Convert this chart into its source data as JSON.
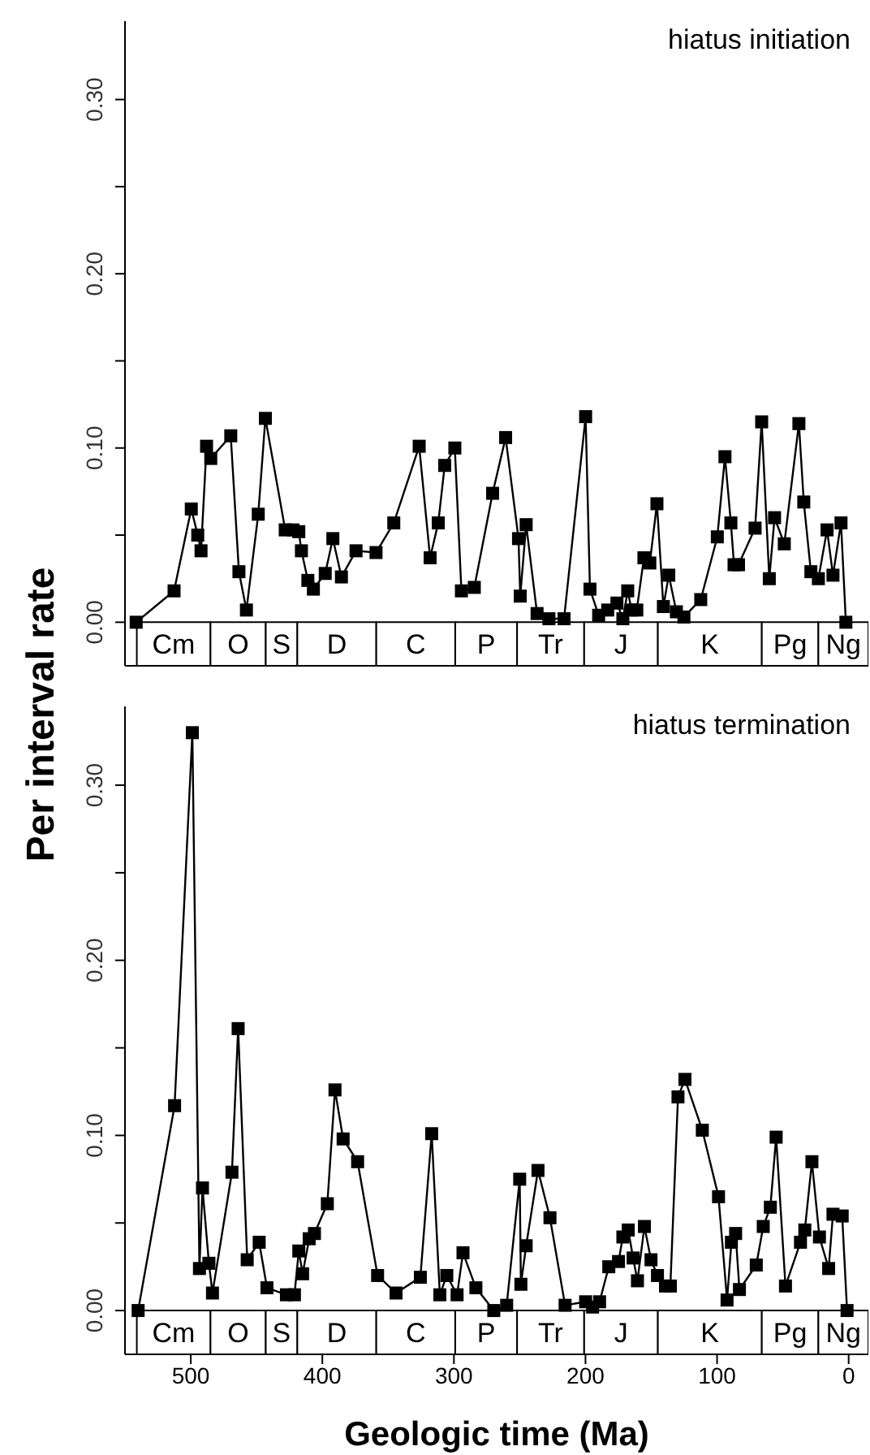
{
  "chart_data": [
    {
      "type": "line",
      "ylabel": "Per interval rate",
      "annotations": [
        "hiatus initiation"
      ],
      "marker": "square",
      "color": "#000000",
      "tick_labels": "y",
      "xlim": [
        550,
        -15
      ],
      "xticks": [
        500,
        400,
        300,
        200,
        100,
        0
      ],
      "ylim": [
        -0.025,
        0.345
      ],
      "yticks": [
        {
          "value": 0,
          "label": "0.00"
        },
        {
          "value": 0.05,
          "label": null
        },
        {
          "value": 0.1,
          "label": "0.10"
        },
        {
          "value": 0.15,
          "label": null
        },
        {
          "value": 0.2,
          "label": "0.20"
        },
        {
          "value": 0.25,
          "label": null
        },
        {
          "value": 0.3,
          "label": "0.30"
        }
      ],
      "bands": [
        {
          "axis": "x",
          "from": 541,
          "to": 485,
          "label": "Cm"
        },
        {
          "axis": "x",
          "from": 485,
          "to": 443,
          "label": "O"
        },
        {
          "axis": "x",
          "from": 443,
          "to": 419,
          "label": "S"
        },
        {
          "axis": "x",
          "from": 419,
          "to": 359,
          "label": "D"
        },
        {
          "axis": "x",
          "from": 359,
          "to": 299,
          "label": "C"
        },
        {
          "axis": "x",
          "from": 299,
          "to": 252,
          "label": "P"
        },
        {
          "axis": "x",
          "from": 252,
          "to": 201,
          "label": "Tr"
        },
        {
          "axis": "x",
          "from": 201,
          "to": 145,
          "label": "J"
        },
        {
          "axis": "x",
          "from": 145,
          "to": 66,
          "label": "K"
        },
        {
          "axis": "x",
          "from": 66,
          "to": 23,
          "label": "Pg"
        },
        {
          "axis": "x",
          "from": 23,
          "to": -15,
          "label": "Ng"
        }
      ],
      "x": [
        541.5,
        512.7,
        499.6,
        494.7,
        492.2,
        488,
        484.8,
        469.6,
        463.4,
        457.7,
        448.7,
        443.3,
        428.2,
        422.4,
        417.9,
        415.9,
        411,
        406.8,
        397.8,
        392,
        385.5,
        374.4,
        359.2,
        345.7,
        326.4,
        318.1,
        311.9,
        307,
        299.3,
        294.3,
        284.5,
        270.6,
        260.7,
        250.9,
        249.6,
        245.1,
        236.8,
        227.8,
        216.3,
        199.9,
        196.6,
        190,
        183.1,
        176.1,
        171.6,
        167.9,
        165,
        161,
        155.6,
        151.1,
        145.7,
        140.8,
        136.7,
        130.9,
        125.2,
        112.4,
        99.8,
        94,
        89.5,
        87.1,
        83.7,
        71.1,
        66.1,
        60.3,
        56.3,
        48.9,
        37.8,
        34.1,
        28.7,
        23,
        16.4,
        11.9,
        5.8,
        2.1
      ],
      "values": [
        0,
        0.018,
        0.065,
        0.05,
        0.041,
        0.101,
        0.094,
        0.107,
        0.029,
        0.007,
        0.062,
        0.117,
        0.053,
        0.053,
        0.052,
        0.041,
        0.024,
        0.019,
        0.028,
        0.048,
        0.026,
        0.041,
        0.04,
        0.057,
        0.101,
        0.037,
        0.057,
        0.09,
        0.1,
        0.018,
        0.02,
        0.074,
        0.106,
        0.048,
        0.015,
        0.056,
        0.005,
        0.002,
        0.002,
        0.118,
        0.019,
        0.004,
        0.007,
        0.011,
        0.002,
        0.018,
        0.007,
        0.007,
        0.037,
        0.034,
        0.068,
        0.009,
        0.027,
        0.006,
        0.003,
        0.013,
        0.049,
        0.095,
        0.057,
        0.033,
        0.033,
        0.054,
        0.115,
        0.025,
        0.06,
        0.045,
        0.114,
        0.069,
        0.029,
        0.025,
        0.053,
        0.027,
        0.057,
        0
      ]
    },
    {
      "type": "line",
      "xlabel": "Geologic time (Ma)",
      "annotations": [
        "hiatus termination"
      ],
      "marker": "square",
      "color": "#000000",
      "xlim": [
        550,
        -15
      ],
      "xticks": [
        500,
        400,
        300,
        200,
        100,
        0
      ],
      "ylim": [
        -0.025,
        0.345
      ],
      "yticks": [
        {
          "value": 0,
          "label": "0.00"
        },
        {
          "value": 0.05,
          "label": null
        },
        {
          "value": 0.1,
          "label": "0.10"
        },
        {
          "value": 0.15,
          "label": null
        },
        {
          "value": 0.2,
          "label": "0.20"
        },
        {
          "value": 0.25,
          "label": null
        },
        {
          "value": 0.3,
          "label": "0.30"
        }
      ],
      "bands": [
        {
          "axis": "x",
          "from": 541,
          "to": 485,
          "label": "Cm"
        },
        {
          "axis": "x",
          "from": 485,
          "to": 443,
          "label": "O"
        },
        {
          "axis": "x",
          "from": 443,
          "to": 419,
          "label": "S"
        },
        {
          "axis": "x",
          "from": 419,
          "to": 359,
          "label": "D"
        },
        {
          "axis": "x",
          "from": 359,
          "to": 299,
          "label": "C"
        },
        {
          "axis": "x",
          "from": 299,
          "to": 252,
          "label": "P"
        },
        {
          "axis": "x",
          "from": 252,
          "to": 201,
          "label": "Tr"
        },
        {
          "axis": "x",
          "from": 201,
          "to": 145,
          "label": "J"
        },
        {
          "axis": "x",
          "from": 145,
          "to": 66,
          "label": "K"
        },
        {
          "axis": "x",
          "from": 66,
          "to": 23,
          "label": "Pg"
        },
        {
          "axis": "x",
          "from": 23,
          "to": -15,
          "label": "Ng"
        }
      ],
      "x": [
        540,
        512.3,
        498.8,
        493.4,
        491.1,
        486.2,
        483.5,
        468.7,
        464,
        457.1,
        448,
        442.1,
        427.3,
        421.2,
        417.9,
        415,
        410,
        406,
        396.2,
        390.4,
        384.2,
        373.2,
        358,
        344,
        325.5,
        316.9,
        310.7,
        305.4,
        297.6,
        293.1,
        283.3,
        269.7,
        259.9,
        250,
        249.1,
        245.1,
        236.1,
        227,
        215.5,
        199.9,
        194.6,
        189.3,
        182.3,
        174.9,
        171.6,
        167.5,
        163.8,
        160.5,
        155.2,
        150.2,
        145.3,
        139.2,
        135.5,
        129.7,
        124.4,
        111.2,
        98.9,
        92.4,
        89.1,
        85.9,
        83,
        70.2,
        64.9,
        59.5,
        55.1,
        48,
        36.6,
        33.3,
        27.9,
        22.2,
        15.2,
        11.9,
        4.9,
        1.2
      ],
      "values": [
        0,
        0.117,
        0.33,
        0.024,
        0.07,
        0.027,
        0.01,
        0.079,
        0.161,
        0.029,
        0.039,
        0.013,
        0.009,
        0.009,
        0.034,
        0.021,
        0.041,
        0.044,
        0.061,
        0.126,
        0.098,
        0.085,
        0.02,
        0.01,
        0.019,
        0.101,
        0.009,
        0.02,
        0.009,
        0.033,
        0.013,
        0,
        0.003,
        0.075,
        0.015,
        0.037,
        0.08,
        0.053,
        0.003,
        0.005,
        0.002,
        0.005,
        0.025,
        0.028,
        0.042,
        0.046,
        0.03,
        0.017,
        0.048,
        0.029,
        0.02,
        0.014,
        0.014,
        0.122,
        0.132,
        0.103,
        0.065,
        0.006,
        0.039,
        0.044,
        0.012,
        0.026,
        0.048,
        0.059,
        0.099,
        0.014,
        0.039,
        0.046,
        0.085,
        0.042,
        0.024,
        0.055,
        0.054,
        0
      ]
    }
  ]
}
